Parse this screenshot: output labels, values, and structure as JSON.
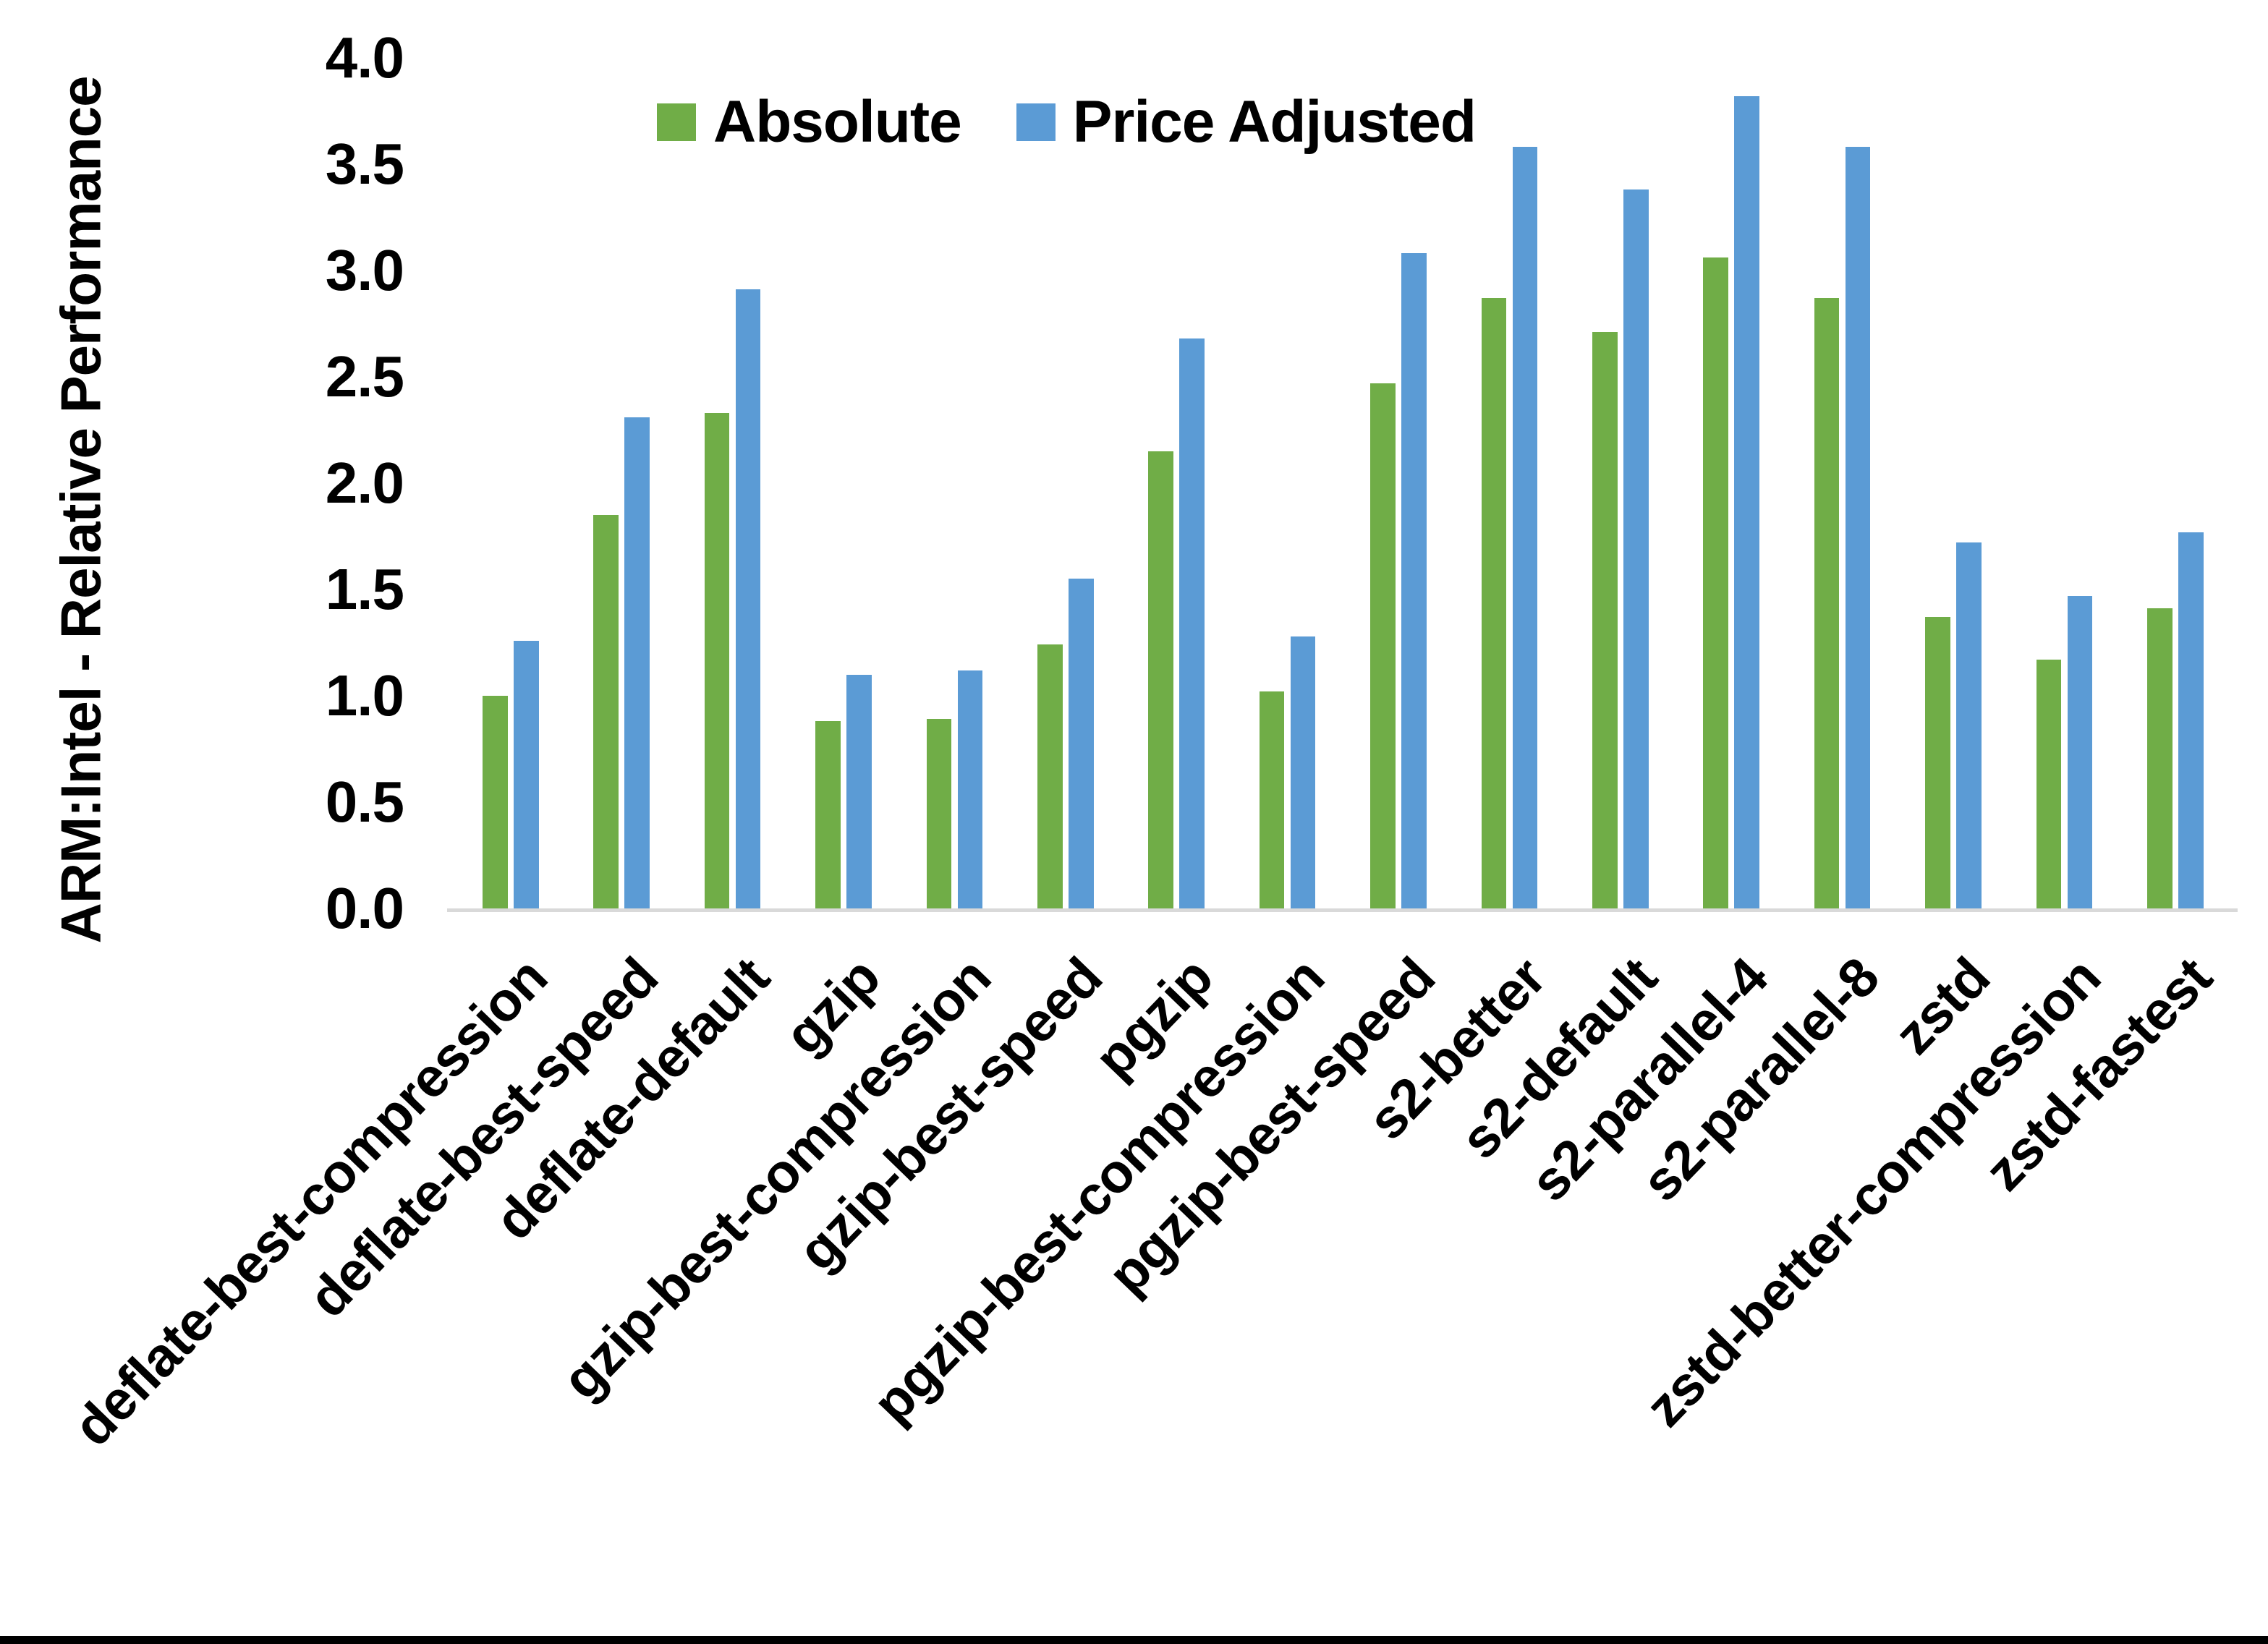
{
  "chart_data": {
    "type": "bar",
    "title": "",
    "xlabel": "",
    "ylabel": "ARM:Intel - Relative Performance",
    "ylim": [
      0.0,
      4.0
    ],
    "ytick_step": 0.5,
    "ytick_labels": [
      "0.0",
      "0.5",
      "1.0",
      "1.5",
      "2.0",
      "2.5",
      "3.0",
      "3.5",
      "4.0"
    ],
    "grid": false,
    "legend_position": "top-center",
    "categories": [
      "deflate-best-compression",
      "deflate-best-speed",
      "deflate-default",
      "gzip",
      "gzip-best-compression",
      "gzip-best-speed",
      "pgzip",
      "pgzip-best-compression",
      "pgzip-best-speed",
      "s2-better",
      "s2-default",
      "s2-parallel-4",
      "s2-parallel-8",
      "zstd",
      "zstd-better-compression",
      "zstd-fastest"
    ],
    "series": [
      {
        "name": "Absolute",
        "color": "#70AD47",
        "values": [
          1.0,
          1.85,
          2.33,
          0.88,
          0.89,
          1.24,
          2.15,
          1.02,
          2.47,
          2.87,
          2.71,
          3.06,
          2.87,
          1.37,
          1.17,
          1.41
        ]
      },
      {
        "name": "Price Adjusted",
        "color": "#5B9BD5",
        "values": [
          1.26,
          2.31,
          2.91,
          1.1,
          1.12,
          1.55,
          2.68,
          1.28,
          3.08,
          3.58,
          3.38,
          3.82,
          3.58,
          1.72,
          1.47,
          1.77
        ]
      }
    ]
  },
  "colors": {
    "background": "#FFFFFF",
    "axis_line": "#D9D9D9",
    "text": "#000000",
    "bottom_bar": "#000000"
  }
}
